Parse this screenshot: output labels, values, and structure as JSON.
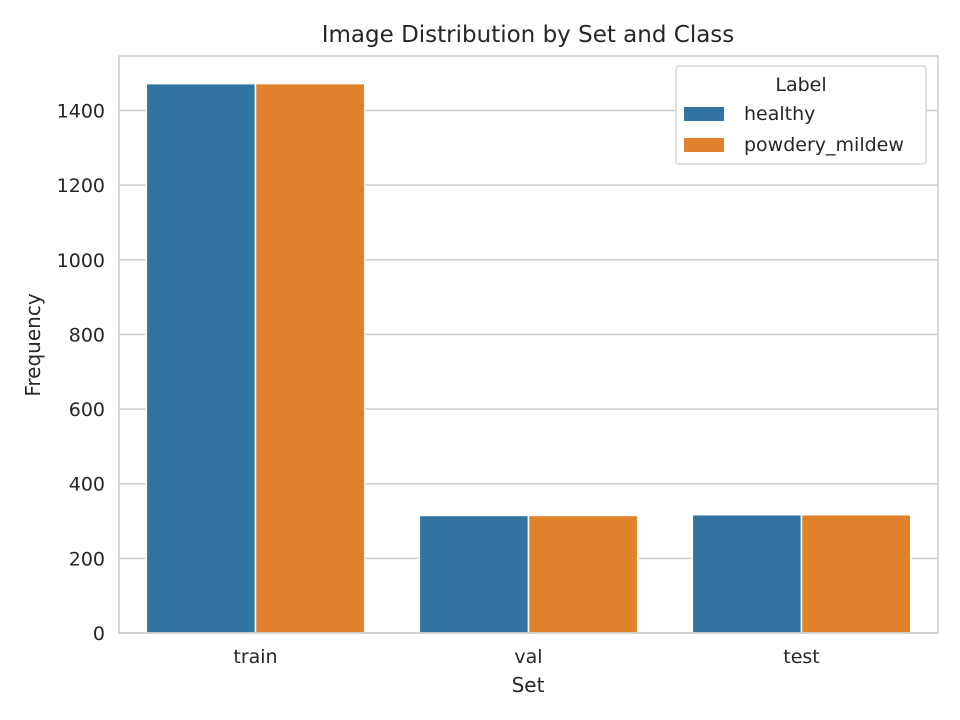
{
  "chart_data": {
    "type": "bar",
    "title": "Image Distribution by Set and Class",
    "xlabel": "Set",
    "ylabel": "Frequency",
    "categories": [
      "train",
      "val",
      "test"
    ],
    "series": [
      {
        "name": "healthy",
        "values": [
          1472,
          315,
          317
        ],
        "color": "#3274a1"
      },
      {
        "name": "powdery_mildew",
        "values": [
          1472,
          315,
          317
        ],
        "color": "#e1812c"
      }
    ],
    "ylim": [
      0,
      1546
    ],
    "yticks": [
      0,
      200,
      400,
      600,
      800,
      1000,
      1200,
      1400
    ],
    "grid": true,
    "legend": {
      "title": "Label",
      "placement": "top-right"
    }
  }
}
